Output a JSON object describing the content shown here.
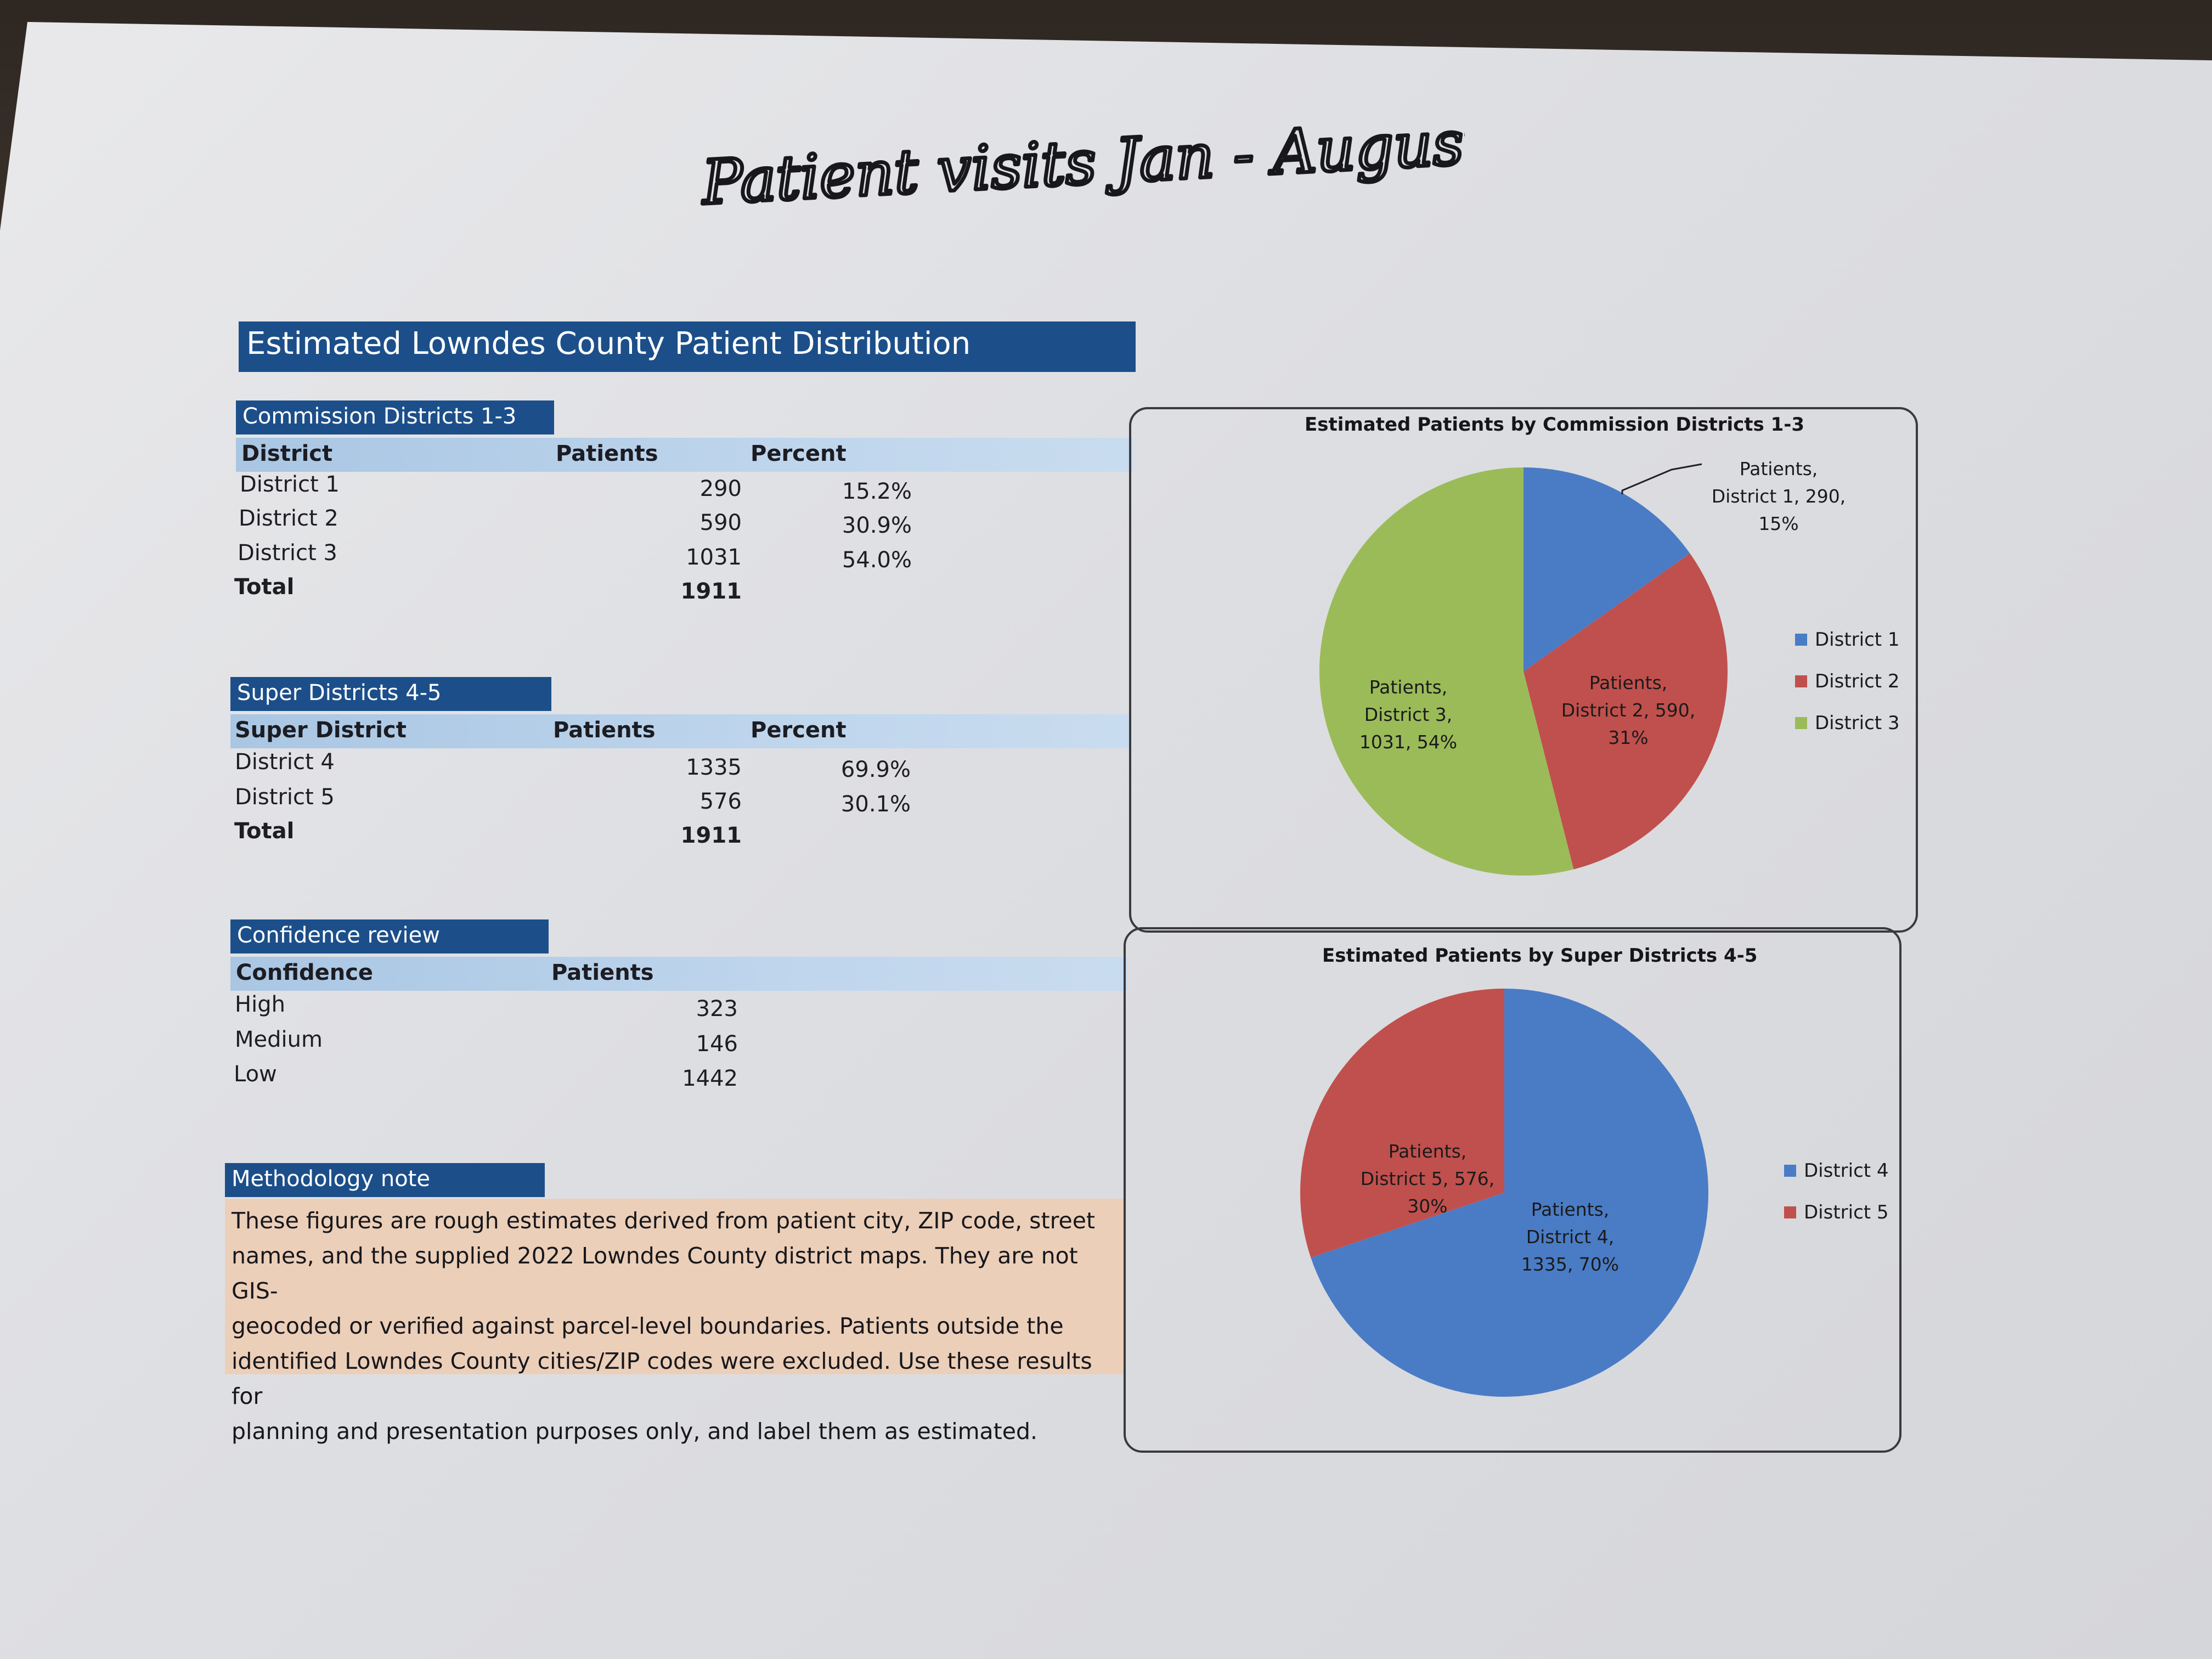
{
  "handwritten_title": "Patient visits Jan - August",
  "title": "Estimated Lowndes County Patient Distribution",
  "commission": {
    "section_title": "Commission Districts 1-3",
    "headers": [
      "District",
      "Patients",
      "Percent"
    ],
    "rows": [
      {
        "label": "District 1",
        "patients": "290",
        "percent": "15.2%"
      },
      {
        "label": "District 2",
        "patients": "590",
        "percent": "30.9%"
      },
      {
        "label": "District 3",
        "patients": "1031",
        "percent": "54.0%"
      }
    ],
    "total_label": "Total",
    "total_value": "1911"
  },
  "super": {
    "section_title": "Super Districts 4-5",
    "headers": [
      "Super District",
      "Patients",
      "Percent"
    ],
    "rows": [
      {
        "label": "District 4",
        "patients": "1335",
        "percent": "69.9%"
      },
      {
        "label": "District 5",
        "patients": "576",
        "percent": "30.1%"
      }
    ],
    "total_label": "Total",
    "total_value": "1911"
  },
  "confidence": {
    "section_title": "Confidence review",
    "headers": [
      "Confidence",
      "Patients"
    ],
    "rows": [
      {
        "label": "High",
        "patients": "323"
      },
      {
        "label": "Medium",
        "patients": "146"
      },
      {
        "label": "Low",
        "patients": "1442"
      }
    ]
  },
  "methodology": {
    "section_title": "Methodology note",
    "lines": [
      "These figures are rough estimates derived from patient city, ZIP code, street",
      "names, and the supplied 2022 Lowndes County district maps. They are not GIS-",
      "geocoded or verified against parcel-level boundaries. Patients outside the",
      "identified Lowndes County cities/ZIP codes were excluded. Use these results for",
      "planning and presentation purposes only, and label them as estimated."
    ]
  },
  "colors": {
    "title_bar": "#1c4f8a",
    "header_row": "#bed5ec",
    "note_background": "#eccfb9",
    "blue": "#4a7cc6",
    "red": "#c0504d",
    "green": "#9bbb59"
  },
  "chart_data": [
    {
      "type": "pie",
      "title": "Estimated Patients by Commission Districts 1-3",
      "categories": [
        "District 1",
        "District 2",
        "District 3"
      ],
      "values": [
        290,
        590,
        1031
      ],
      "percent_labels": [
        "15%",
        "31%",
        "54%"
      ],
      "series_name": "Patients",
      "slice_labels": [
        [
          "Patients,",
          "District 1, 290,",
          "15%"
        ],
        [
          "Patients,",
          "District 2, 590,",
          "31%"
        ],
        [
          "Patients,",
          "District 3,",
          "1031, 54%"
        ]
      ],
      "colors": [
        "#4a7cc6",
        "#c0504d",
        "#9bbb59"
      ],
      "legend_position": "right"
    },
    {
      "type": "pie",
      "title": "Estimated Patients by Super Districts 4-5",
      "categories": [
        "District 4",
        "District 5"
      ],
      "values": [
        1335,
        576
      ],
      "percent_labels": [
        "70%",
        "30%"
      ],
      "series_name": "Patients",
      "slice_labels": [
        [
          "Patients,",
          "District 4,",
          "1335, 70%"
        ],
        [
          "Patients,",
          "District 5, 576,",
          "30%"
        ]
      ],
      "colors": [
        "#4a7cc6",
        "#c0504d"
      ],
      "legend_position": "right"
    }
  ]
}
